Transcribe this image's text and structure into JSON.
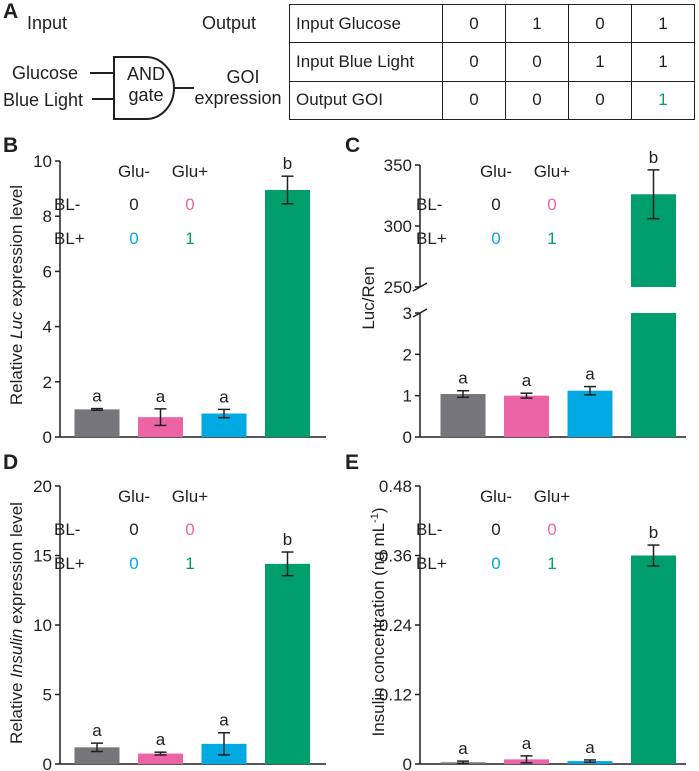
{
  "panel_a": {
    "label": "A",
    "input_title": "Input",
    "output_title": "Output",
    "inputs": [
      "Glucose",
      "Blue Light"
    ],
    "gate_line1": "AND",
    "gate_line2": "gate",
    "output_line1": "GOI",
    "output_line2": "expression",
    "truth_table": {
      "rows": [
        {
          "label": "Input Glucose",
          "values": [
            "0",
            "1",
            "0",
            "1"
          ]
        },
        {
          "label": "Input Blue Light",
          "values": [
            "0",
            "0",
            "1",
            "1"
          ]
        },
        {
          "label": "Output GOI",
          "values": [
            "0",
            "0",
            "0",
            "1"
          ]
        }
      ],
      "highlight_color": "#009e6c"
    }
  },
  "legend": {
    "col_labels": [
      "Glu-",
      "Glu+"
    ],
    "row_labels": [
      "BL-",
      "BL+"
    ],
    "cells": [
      [
        "0",
        "0"
      ],
      [
        "0",
        "1"
      ]
    ]
  },
  "colors": {
    "gray": "#76767a",
    "pink": "#ec64a6",
    "blue": "#00a9e2",
    "green": "#009e6c",
    "text": "#231f20"
  },
  "chart_data": [
    {
      "panel": "B",
      "type": "bar",
      "ylabel_pre": "Relative ",
      "ylabel_italic": "Luc",
      "ylabel_post": " expression level",
      "ylim": [
        0,
        10
      ],
      "yticks": [
        "0",
        "2",
        "4",
        "6",
        "8",
        "10"
      ],
      "values": [
        1.0,
        0.72,
        0.85,
        8.95
      ],
      "errors": [
        0.03,
        0.3,
        0.15,
        0.5
      ],
      "letters": [
        "a",
        "a",
        "a",
        "b"
      ]
    },
    {
      "panel": "C",
      "type": "bar",
      "ylabel": "Luc/Ren",
      "broken_axis": true,
      "lower_ylim": [
        0,
        3
      ],
      "upper_ylim": [
        250,
        350
      ],
      "lower_yticks": [
        "0",
        "1",
        "2",
        "3"
      ],
      "upper_yticks": [
        "250",
        "300",
        "350"
      ],
      "values": [
        1.04,
        1.0,
        1.12,
        326
      ],
      "errors": [
        0.08,
        0.06,
        0.1,
        20
      ],
      "letters": [
        "a",
        "a",
        "a",
        "b"
      ]
    },
    {
      "panel": "D",
      "type": "bar",
      "ylabel_pre": "Relative ",
      "ylabel_italic": "Insulin",
      "ylabel_post": " expression level",
      "ylim": [
        0,
        20
      ],
      "yticks": [
        "0",
        "5",
        "10",
        "15",
        "20"
      ],
      "values": [
        1.2,
        0.75,
        1.45,
        14.4
      ],
      "errors": [
        0.3,
        0.1,
        0.8,
        0.85
      ],
      "letters": [
        "a",
        "a",
        "a",
        "b"
      ]
    },
    {
      "panel": "E",
      "type": "bar",
      "ylabel_main": "Insulin concentration (ng mL",
      "ylabel_sup": "-1",
      "ylabel_close": ")",
      "ylim": [
        0,
        0.48
      ],
      "yticks": [
        "0",
        "0.12",
        "0.24",
        "0.36",
        "0.48"
      ],
      "values": [
        0.003,
        0.008,
        0.005,
        0.36
      ],
      "errors": [
        0.002,
        0.006,
        0.002,
        0.018
      ],
      "letters": [
        "a",
        "a",
        "a",
        "b"
      ]
    }
  ]
}
